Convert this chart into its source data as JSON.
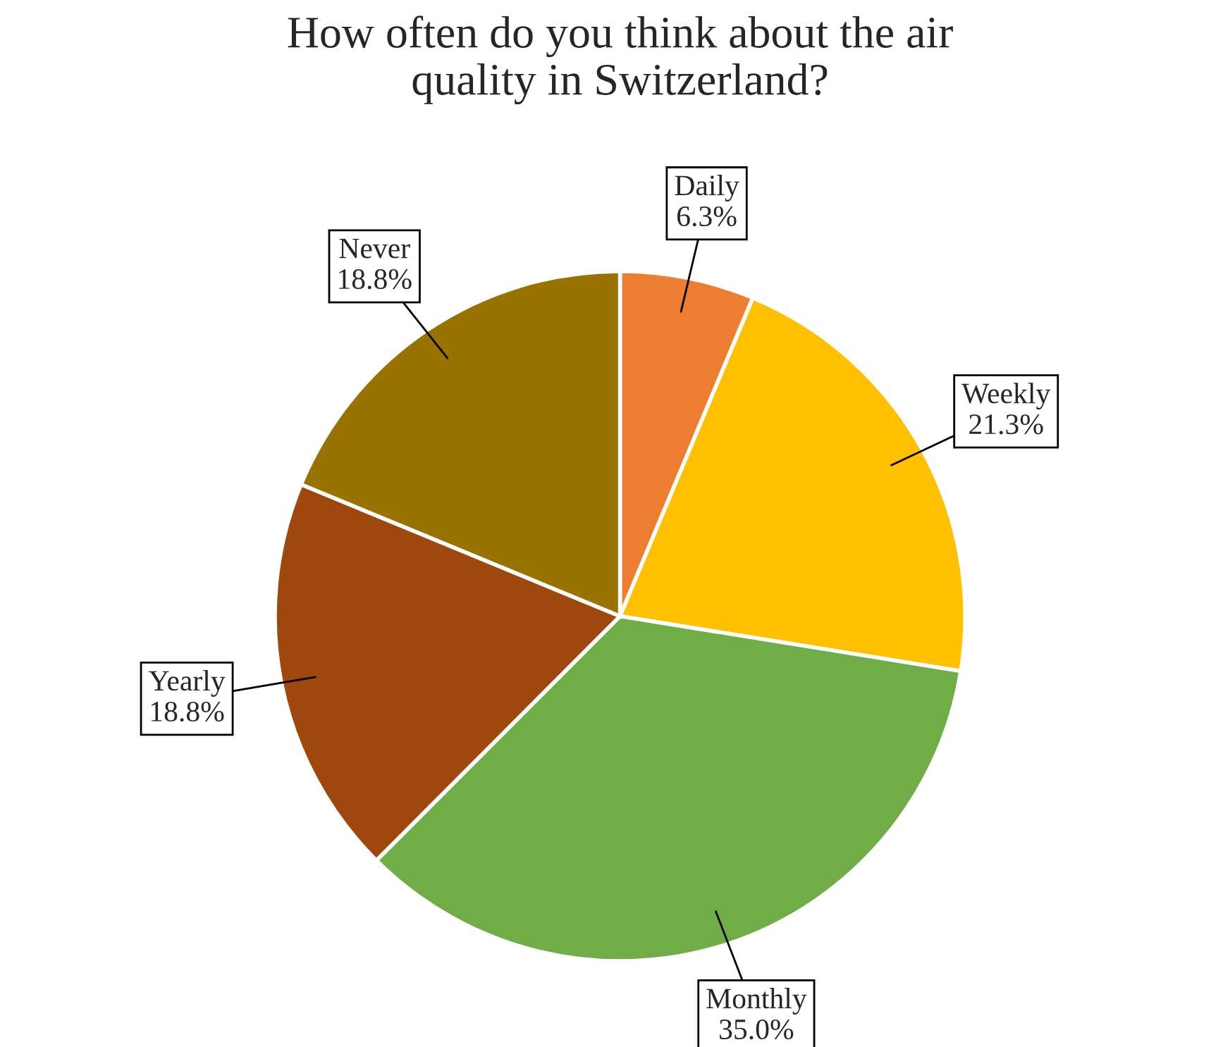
{
  "chart_data": {
    "type": "pie",
    "title": "How often do you think about the air\nquality in Switzerland?",
    "categories": [
      "Daily",
      "Weekly",
      "Monthly",
      "Yearly",
      "Never"
    ],
    "values": [
      6.3,
      21.3,
      35.0,
      18.8,
      18.8
    ],
    "value_labels": [
      "6.3%",
      "21.3%",
      "35.0%",
      "18.8%",
      "18.8%"
    ],
    "colors": [
      "#ed7d31",
      "#ffc000",
      "#70ad47",
      "#9e480e",
      "#997300"
    ],
    "legend": false
  }
}
